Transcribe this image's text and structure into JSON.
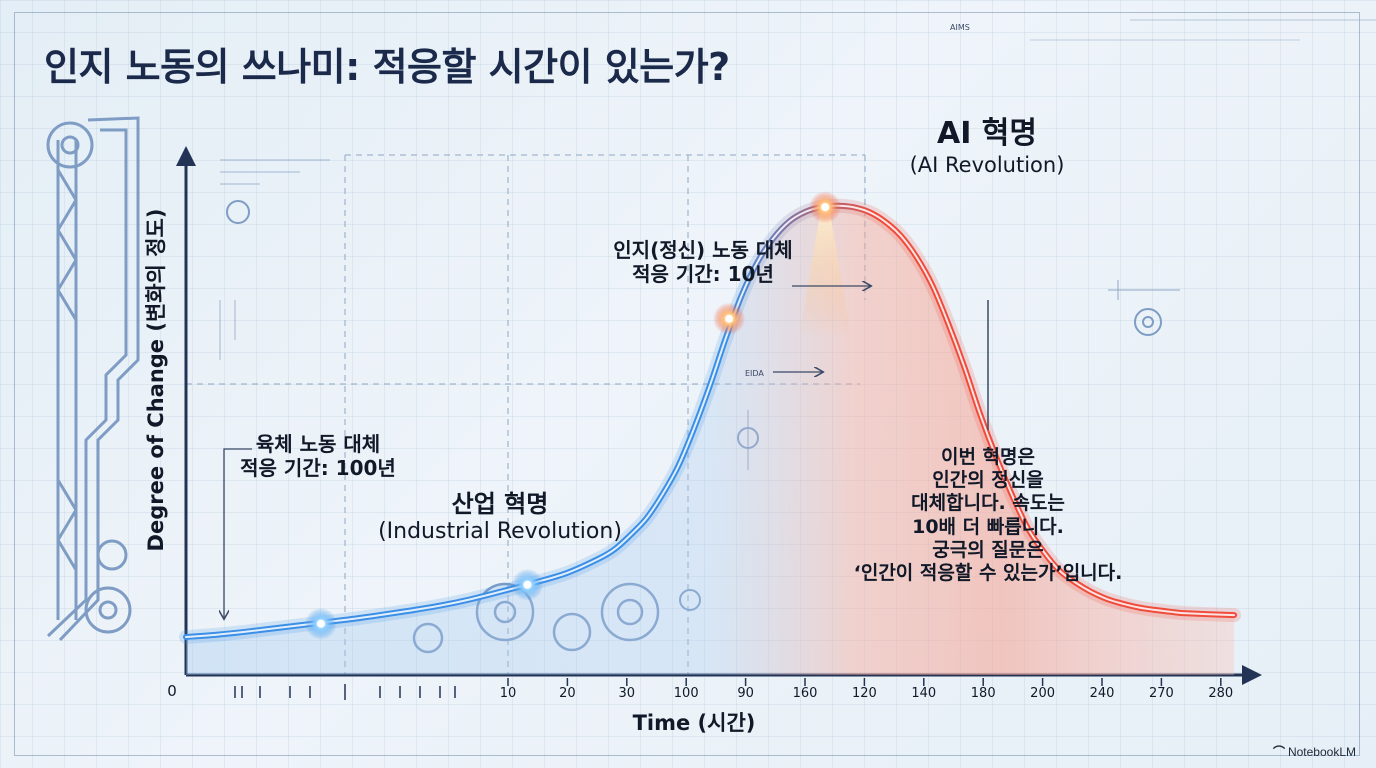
{
  "title": "인지 노동의 쓰나미: 적응할 시간이 있는가?",
  "watermark": {
    "icon": "notebooklm-logo-icon",
    "text": "NotebookLM"
  },
  "colors": {
    "industrial": "#3b8fe6",
    "ai": "#ef4c3c",
    "axis": "#223355",
    "blueprint": "#8fa7c5"
  },
  "annotations": {
    "physical": {
      "line1": "육체 노동 대체",
      "line2": "적응 기간: 100년"
    },
    "cognitive": {
      "line1": "인지(정신) 노동 대체",
      "line2": "적응 기간: 10년"
    },
    "small_tag": "EIDA",
    "top_tag": "AIMS"
  },
  "industrial_label": {
    "ko": "산업 혁명",
    "en": "(Industrial Revolution)"
  },
  "ai_label": {
    "ko": "AI 혁명",
    "en": "(AI Revolution)"
  },
  "message": {
    "lines": [
      "이번 혁명은",
      "인간의 정신을",
      "대체합니다. 속도는",
      "10배 더 빠릅니다.",
      "궁극의 질문은",
      "‘인간이 적응할 수 있는가’입니다."
    ]
  },
  "chart_data": {
    "type": "line",
    "xlabel": "Time (시간)",
    "ylabel": "Degree of Change (변화의 정도)",
    "origin_label": "0",
    "x_ticks": [
      "10",
      "20",
      "30",
      "100",
      "90",
      "160",
      "120",
      "140",
      "180",
      "200",
      "240",
      "270",
      "280"
    ],
    "y_range": [
      0,
      100
    ],
    "grid": true,
    "legend": "none",
    "series": [
      {
        "x_positions": [
          0,
          0.4,
          0.8,
          1.2,
          1.6,
          2.0,
          2.4,
          2.8,
          3.2,
          3.6,
          4.0,
          4.4,
          4.8,
          5.2,
          5.4,
          5.6,
          5.8,
          6.0,
          6.2,
          6.4,
          6.6,
          6.8,
          7.0,
          7.2,
          7.4,
          7.6,
          7.8,
          8.0,
          8.2,
          8.4,
          8.6,
          8.8,
          9.0,
          9.2,
          9.4,
          9.6,
          9.8,
          10.0,
          10.2,
          10.4,
          10.6,
          10.8,
          11.0,
          11.2,
          11.4,
          11.6,
          11.8,
          12.0,
          12.2,
          12.4,
          12.6,
          13.2
        ],
        "values": [
          8,
          8.5,
          9.2,
          10,
          10.8,
          11.6,
          12.5,
          13.5,
          14.6,
          16,
          17.7,
          19.5,
          21.5,
          24.5,
          26.5,
          29.5,
          33,
          38,
          44,
          52,
          61,
          71,
          80,
          87,
          92,
          95.5,
          97.5,
          98.5,
          98.8,
          98.5,
          97.5,
          95.5,
          92.5,
          88,
          82,
          74,
          65,
          55,
          46,
          38,
          31,
          26,
          22,
          19.5,
          17.5,
          16,
          15,
          14.2,
          13.7,
          13.3,
          13,
          12.6
        ]
      }
    ],
    "highlights": [
      {
        "x_position": 1.7,
        "value": 10.8,
        "era": "industrial"
      },
      {
        "x_position": 4.3,
        "value": 19,
        "era": "industrial"
      },
      {
        "x_position": 6.84,
        "value": 75,
        "era": "ai"
      },
      {
        "x_position": 8.05,
        "value": 98.5,
        "era": "ai"
      }
    ]
  }
}
